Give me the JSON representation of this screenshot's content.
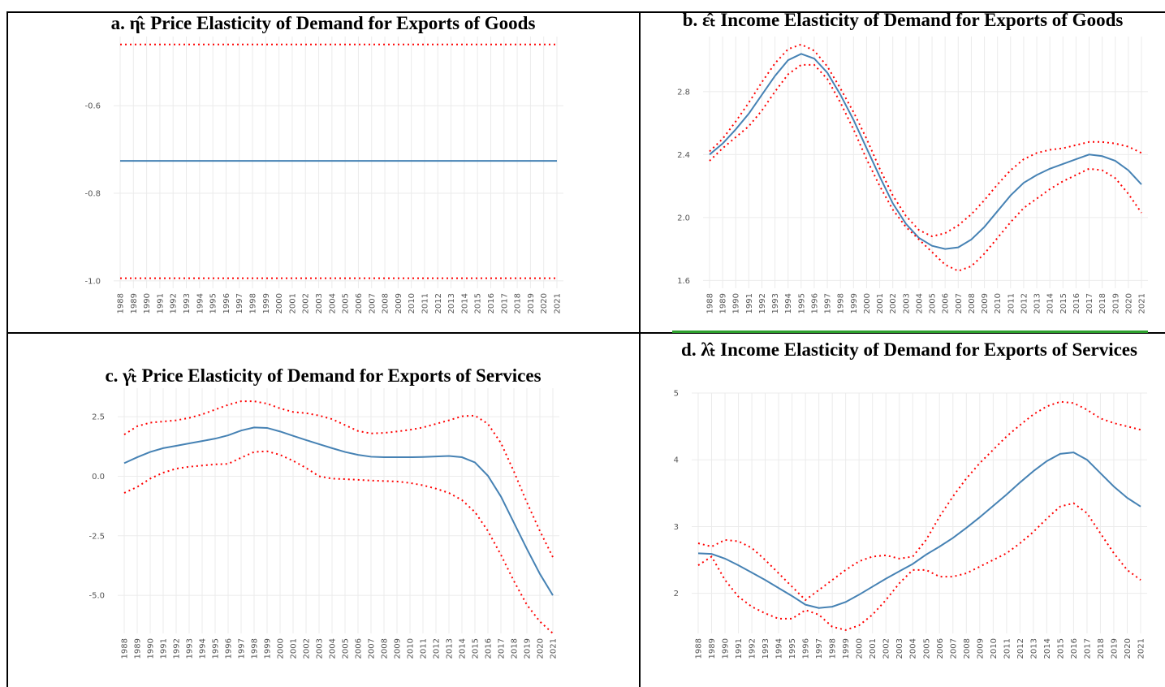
{
  "chart_data": [
    {
      "type": "line",
      "title": "a. η̂ₜ Price Elasticity of Demand for Exports of Goods",
      "categories": [
        "1988",
        "1989",
        "1990",
        "1991",
        "1992",
        "1993",
        "1994",
        "1995",
        "1996",
        "1997",
        "1998",
        "1999",
        "2000",
        "2001",
        "2002",
        "2003",
        "2004",
        "2005",
        "2006",
        "2007",
        "2008",
        "2009",
        "2010",
        "2011",
        "2012",
        "2013",
        "2014",
        "2015",
        "2016",
        "2017",
        "2018",
        "2019",
        "2020",
        "2021"
      ],
      "ylim": [
        -1.017,
        -0.442
      ],
      "yticks": [
        {
          "value": -1,
          "label": "-1.0"
        },
        -0.8,
        -0.6
      ],
      "grid": true,
      "series": [
        {
          "color": "#4682b4",
          "dash": "solid",
          "values": [
            -0.726,
            -0.726,
            -0.726,
            -0.726,
            -0.726,
            -0.726,
            -0.726,
            -0.726,
            -0.726,
            -0.726,
            -0.726,
            -0.726,
            -0.726,
            -0.726,
            -0.726,
            -0.726,
            -0.726,
            -0.726,
            -0.726,
            -0.726,
            -0.726,
            -0.726,
            -0.726,
            -0.726,
            -0.726,
            -0.726,
            -0.726,
            -0.726,
            -0.726,
            -0.726,
            -0.726,
            -0.726,
            -0.726,
            -0.726
          ]
        },
        {
          "color": "#ff0000",
          "dash": "dotted",
          "values": [
            -0.46,
            -0.46,
            -0.46,
            -0.46,
            -0.46,
            -0.46,
            -0.46,
            -0.46,
            -0.46,
            -0.46,
            -0.46,
            -0.46,
            -0.46,
            -0.46,
            -0.46,
            -0.46,
            -0.46,
            -0.46,
            -0.46,
            -0.46,
            -0.46,
            -0.46,
            -0.46,
            -0.46,
            -0.46,
            -0.46,
            -0.46,
            -0.46,
            -0.46,
            -0.46,
            -0.46,
            -0.46,
            -0.46,
            -0.46
          ]
        },
        {
          "color": "#ff0000",
          "dash": "dotted",
          "values": [
            -0.994,
            -0.994,
            -0.994,
            -0.994,
            -0.994,
            -0.994,
            -0.994,
            -0.994,
            -0.994,
            -0.994,
            -0.994,
            -0.994,
            -0.994,
            -0.994,
            -0.994,
            -0.994,
            -0.994,
            -0.994,
            -0.994,
            -0.994,
            -0.994,
            -0.994,
            -0.994,
            -0.994,
            -0.994,
            -0.994,
            -0.994,
            -0.994,
            -0.994,
            -0.994,
            -0.994,
            -0.994,
            -0.994,
            -0.994
          ]
        }
      ]
    },
    {
      "type": "line",
      "title": "b. ε̂ₜ Income Elasticity of Demand for Exports of Goods",
      "categories": [
        "1988",
        "1989",
        "1990",
        "1991",
        "1992",
        "1993",
        "1994",
        "1995",
        "1996",
        "1997",
        "1998",
        "1999",
        "2000",
        "2001",
        "2002",
        "2003",
        "2004",
        "2005",
        "2006",
        "2007",
        "2008",
        "2009",
        "2010",
        "2011",
        "2012",
        "2013",
        "2014",
        "2015",
        "2016",
        "2017",
        "2018",
        "2019",
        "2020",
        "2021"
      ],
      "ylim": [
        1.55,
        3.15
      ],
      "yticks": [
        1.6,
        {
          "value": 2,
          "label": "2.0"
        },
        2.4,
        2.8
      ],
      "grid": true,
      "series": [
        {
          "color": "#4682b4",
          "dash": "solid",
          "values": [
            2.4,
            2.47,
            2.56,
            2.66,
            2.78,
            2.9,
            3.0,
            3.04,
            3.01,
            2.92,
            2.78,
            2.62,
            2.44,
            2.26,
            2.09,
            1.96,
            1.87,
            1.82,
            1.8,
            1.81,
            1.86,
            1.94,
            2.04,
            2.14,
            2.22,
            2.27,
            2.31,
            2.34,
            2.37,
            2.4,
            2.39,
            2.36,
            2.3,
            2.21
          ]
        },
        {
          "color": "#ff0000",
          "dash": "dotted",
          "values": [
            2.42,
            2.5,
            2.61,
            2.73,
            2.86,
            2.98,
            3.07,
            3.1,
            3.06,
            2.96,
            2.82,
            2.67,
            2.5,
            2.31,
            2.14,
            2.01,
            1.92,
            1.88,
            1.9,
            1.95,
            2.02,
            2.11,
            2.21,
            2.3,
            2.37,
            2.41,
            2.43,
            2.44,
            2.46,
            2.48,
            2.48,
            2.47,
            2.45,
            2.41
          ]
        },
        {
          "color": "#ff0000",
          "dash": "dotted",
          "values": [
            2.36,
            2.44,
            2.51,
            2.58,
            2.68,
            2.8,
            2.91,
            2.97,
            2.97,
            2.88,
            2.73,
            2.56,
            2.37,
            2.2,
            2.05,
            1.94,
            1.86,
            1.78,
            1.7,
            1.66,
            1.69,
            1.77,
            1.87,
            1.97,
            2.06,
            2.12,
            2.18,
            2.23,
            2.27,
            2.31,
            2.3,
            2.25,
            2.15,
            2.03
          ]
        }
      ]
    },
    {
      "type": "line",
      "title": "c. γ̂ₜ Price Elasticity of Demand for Exports of Services",
      "categories": [
        "1988",
        "1989",
        "1990",
        "1991",
        "1992",
        "1993",
        "1994",
        "1995",
        "1996",
        "1997",
        "1998",
        "1999",
        "2000",
        "2001",
        "2002",
        "2003",
        "2004",
        "2005",
        "2006",
        "2007",
        "2008",
        "2009",
        "2010",
        "2011",
        "2012",
        "2013",
        "2014",
        "2015",
        "2016",
        "2017",
        "2018",
        "2019",
        "2020",
        "2021"
      ],
      "ylim": [
        -6.6,
        3.7
      ],
      "yticks": [
        {
          "value": -5,
          "label": "-5.0"
        },
        -2.5,
        {
          "value": 0,
          "label": "0.0"
        },
        2.5
      ],
      "grid": true,
      "series": [
        {
          "color": "#4682b4",
          "dash": "solid",
          "values": [
            0.55,
            0.8,
            1.02,
            1.18,
            1.28,
            1.38,
            1.48,
            1.58,
            1.72,
            1.92,
            2.05,
            2.03,
            1.88,
            1.7,
            1.52,
            1.35,
            1.18,
            1.02,
            0.9,
            0.82,
            0.8,
            0.8,
            0.8,
            0.81,
            0.83,
            0.85,
            0.8,
            0.58,
            0.02,
            -0.85,
            -1.95,
            -3.05,
            -4.1,
            -5.0
          ]
        },
        {
          "color": "#ff0000",
          "dash": "dotted",
          "values": [
            1.75,
            2.1,
            2.25,
            2.3,
            2.35,
            2.45,
            2.6,
            2.8,
            3.0,
            3.15,
            3.15,
            3.05,
            2.85,
            2.7,
            2.65,
            2.55,
            2.4,
            2.15,
            1.9,
            1.8,
            1.82,
            1.88,
            1.95,
            2.05,
            2.2,
            2.35,
            2.52,
            2.55,
            2.2,
            1.4,
            0.2,
            -1.1,
            -2.3,
            -3.4
          ]
        },
        {
          "color": "#ff0000",
          "dash": "dotted",
          "values": [
            -0.7,
            -0.45,
            -0.1,
            0.15,
            0.32,
            0.4,
            0.45,
            0.5,
            0.52,
            0.78,
            1.02,
            1.05,
            0.9,
            0.65,
            0.35,
            0.0,
            -0.1,
            -0.12,
            -0.15,
            -0.18,
            -0.2,
            -0.22,
            -0.28,
            -0.38,
            -0.52,
            -0.7,
            -1.0,
            -1.5,
            -2.3,
            -3.3,
            -4.4,
            -5.4,
            -6.1,
            -6.6
          ]
        }
      ]
    },
    {
      "type": "line",
      "title": "d. λ̂ₜ Income Elasticity of Demand for Exports of Services",
      "categories": [
        "1988",
        "1989",
        "1990",
        "1991",
        "1992",
        "1993",
        "1994",
        "1995",
        "1996",
        "1997",
        "1998",
        "1999",
        "2000",
        "2001",
        "2002",
        "2003",
        "2004",
        "2005",
        "2006",
        "2007",
        "2008",
        "2009",
        "2010",
        "2011",
        "2012",
        "2013",
        "2014",
        "2015",
        "2016",
        "2017",
        "2018",
        "2019",
        "2020",
        "2021"
      ],
      "ylim": [
        1.4,
        5
      ],
      "yticks": [
        2,
        3,
        4,
        5
      ],
      "grid": true,
      "series": [
        {
          "color": "#4682b4",
          "dash": "solid",
          "values": [
            2.6,
            2.59,
            2.52,
            2.42,
            2.31,
            2.2,
            2.08,
            1.96,
            1.83,
            1.78,
            1.8,
            1.87,
            1.98,
            2.1,
            2.22,
            2.33,
            2.44,
            2.58,
            2.7,
            2.83,
            2.98,
            3.14,
            3.31,
            3.48,
            3.66,
            3.83,
            3.98,
            4.09,
            4.11,
            4.0,
            3.8,
            3.6,
            3.43,
            3.3
          ]
        },
        {
          "color": "#ff0000",
          "dash": "dotted",
          "values": [
            2.75,
            2.7,
            2.8,
            2.78,
            2.68,
            2.5,
            2.3,
            2.1,
            1.9,
            2.05,
            2.2,
            2.35,
            2.48,
            2.55,
            2.57,
            2.52,
            2.55,
            2.8,
            3.15,
            3.45,
            3.72,
            3.95,
            4.15,
            4.35,
            4.52,
            4.68,
            4.8,
            4.87,
            4.85,
            4.75,
            4.62,
            4.55,
            4.5,
            4.45
          ]
        },
        {
          "color": "#ff0000",
          "dash": "dotted",
          "values": [
            2.42,
            2.55,
            2.2,
            1.95,
            1.8,
            1.7,
            1.62,
            1.62,
            1.75,
            1.68,
            1.5,
            1.45,
            1.52,
            1.68,
            1.9,
            2.15,
            2.35,
            2.35,
            2.25,
            2.25,
            2.3,
            2.4,
            2.5,
            2.6,
            2.75,
            2.92,
            3.12,
            3.3,
            3.35,
            3.2,
            2.9,
            2.6,
            2.35,
            2.2
          ]
        }
      ]
    }
  ]
}
